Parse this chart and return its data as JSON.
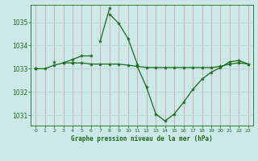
{
  "background_color": "#cce8e8",
  "grid_color_x": "#d4a0a0",
  "grid_color_y": "#b8d8d8",
  "line_color": "#1a6b1a",
  "title": "Graphe pression niveau de la mer (hPa)",
  "xlim": [
    -0.5,
    23.5
  ],
  "ylim": [
    1030.55,
    1035.75
  ],
  "yticks": [
    1031,
    1032,
    1033,
    1034,
    1035
  ],
  "xticks": [
    0,
    1,
    2,
    3,
    4,
    5,
    6,
    7,
    8,
    9,
    10,
    11,
    12,
    13,
    14,
    15,
    16,
    17,
    18,
    19,
    20,
    21,
    22,
    23
  ],
  "series": [
    [
      1033.0,
      1033.0,
      1033.15,
      1033.25,
      1033.25,
      1033.25,
      1033.2,
      1033.2,
      1033.2,
      1033.2,
      1033.15,
      1033.1,
      1033.05,
      1033.05,
      1033.05,
      1033.05,
      1033.05,
      1033.05,
      1033.05,
      1033.05,
      1033.1,
      1033.2,
      1033.25,
      1033.2
    ],
    [
      1033.0,
      null,
      null,
      1033.25,
      1033.4,
      1033.55,
      1033.55,
      null,
      1035.35,
      1034.95,
      1034.3,
      1033.2,
      null,
      null,
      null,
      null,
      null,
      null,
      null,
      null,
      null,
      null,
      null,
      null
    ],
    [
      1033.0,
      null,
      1033.3,
      null,
      1033.25,
      null,
      null,
      1034.2,
      1035.6,
      null,
      null,
      1033.1,
      1032.2,
      1031.05,
      1030.75,
      1031.05,
      1031.55,
      1032.1,
      1032.55,
      1032.85,
      1033.05,
      1033.3,
      1033.35,
      1033.2
    ]
  ]
}
